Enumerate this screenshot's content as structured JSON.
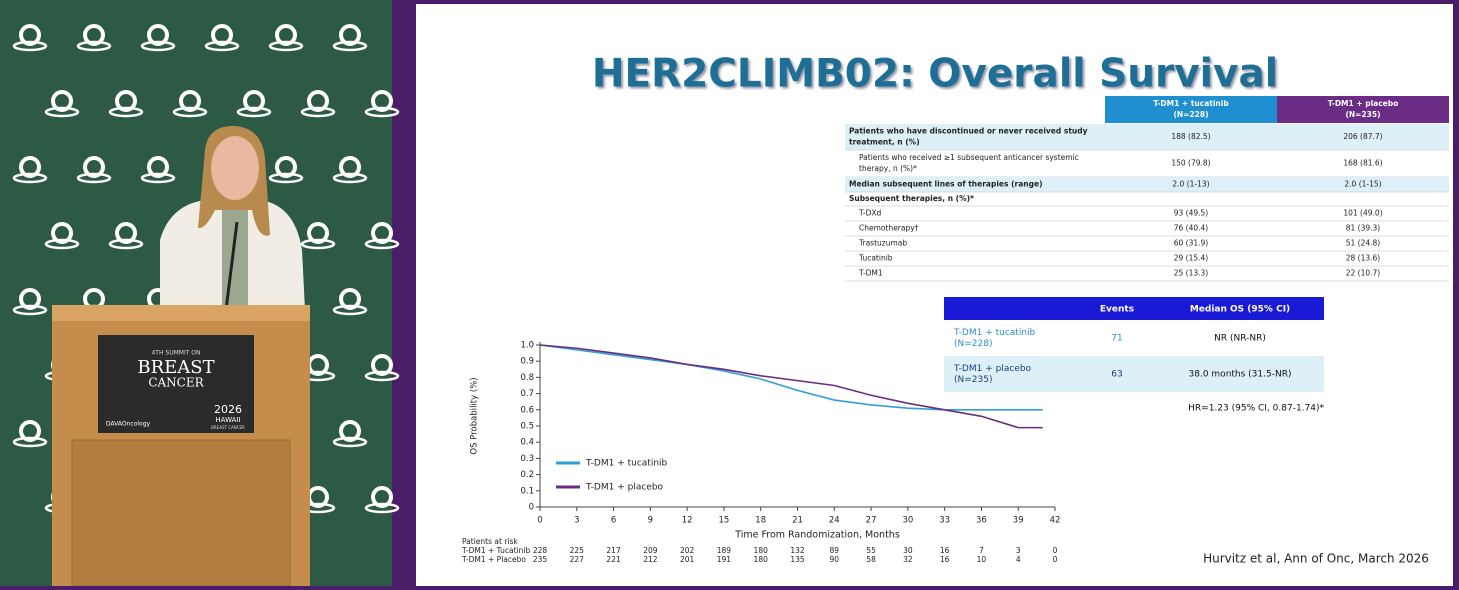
{
  "stage": {
    "podium": {
      "edition": "4TH SUMMIT ON",
      "word1": "BREAST",
      "word2": "CANCER",
      "sponsor": "DAVAOncology",
      "year": "2026",
      "place": "HAWAII",
      "event": "BREAST CANCER"
    }
  },
  "slide": {
    "title": "HER2CLIMB02: Overall Survival",
    "table": {
      "columns": [
        [
          "T-DM1 + tucatinib",
          "(N=228)"
        ],
        [
          "T-DM1 + placebo",
          "(N=235)"
        ]
      ],
      "rows": [
        {
          "label": [
            "Patients who have discontinued or never received study",
            "treatment, n (%)"
          ],
          "cells": [
            "188 (82.5)",
            "206 (87.7)"
          ]
        },
        {
          "label": [
            "Patients who received ≥1 subsequent anticancer systemic",
            "therapy, n (%)*"
          ],
          "cells": [
            "150 (79.8)",
            "168 (81.6)"
          ]
        },
        {
          "label": [
            "Median subsequent lines of therapies (range)"
          ],
          "cells": [
            "2.0 (1-13)",
            "2.0 (1-15)"
          ]
        },
        {
          "label": [
            "Subsequent therapies, n (%)*"
          ]
        },
        {
          "label": [
            "T-DXd"
          ],
          "cells": [
            "93 (49.5)",
            "101 (49.0)"
          ]
        },
        {
          "label": [
            "Chemotherapy†"
          ],
          "cells": [
            "76 (40.4)",
            "81 (39.3)"
          ]
        },
        {
          "label": [
            "Trastuzumab"
          ],
          "cells": [
            "60 (31.9)",
            "51 (24.8)"
          ]
        },
        {
          "label": [
            "Tucatinib"
          ],
          "cells": [
            "29 (15.4)",
            "28 (13.6)"
          ]
        },
        {
          "label": [
            "T-DM1"
          ],
          "cells": [
            "25 (13.3)",
            "22 (10.7)"
          ]
        }
      ]
    },
    "efficacy": {
      "columns": [
        "Events",
        "Median OS (95% CI)"
      ],
      "rows": [
        {
          "label": [
            "T-DM1 + tucatinib",
            "(N=228)"
          ],
          "events": "71",
          "median": "NR (NR-NR)"
        },
        {
          "label": [
            "T-DM1 + placebo",
            "(N=235)"
          ],
          "events": "63",
          "median": "38.0 months (31.5-NR)"
        }
      ],
      "hr": "HR=1.23 (95% CI, 0.87-1.74)*"
    },
    "risk": {
      "title": "Patients at risk",
      "rows": [
        {
          "name": "T-DM1 + Tucatinib",
          "counts": [
            228,
            225,
            217,
            209,
            202,
            189,
            180,
            132,
            89,
            55,
            30,
            16,
            7,
            3,
            0
          ]
        },
        {
          "name": "T-DM1 + Placebo",
          "counts": [
            235,
            227,
            221,
            212,
            201,
            191,
            180,
            135,
            90,
            58,
            32,
            16,
            10,
            4,
            0
          ]
        }
      ]
    },
    "citation": "Hurvitz et al,  Ann of Onc, March 2026"
  },
  "chart_data": {
    "type": "line",
    "x_label": "Time From Randomization, Months",
    "y_label": "OS Probability (%)",
    "x": [
      0,
      3,
      6,
      9,
      12,
      15,
      18,
      21,
      24,
      27,
      30,
      33,
      36,
      39,
      41
    ],
    "series": [
      {
        "name": "T-DM1 + tucatinib",
        "color": "#2f9fd8",
        "values": [
          1.0,
          0.97,
          0.94,
          0.91,
          0.88,
          0.84,
          0.79,
          0.72,
          0.66,
          0.63,
          0.61,
          0.6,
          0.6,
          0.6,
          0.6
        ]
      },
      {
        "name": "T-DM1 + placebo",
        "color": "#6b2d7e",
        "values": [
          1.0,
          0.98,
          0.95,
          0.92,
          0.88,
          0.85,
          0.81,
          0.78,
          0.75,
          0.69,
          0.64,
          0.6,
          0.56,
          0.49,
          0.49
        ]
      }
    ],
    "xlim": [
      0,
      42
    ],
    "xticks": [
      0,
      3,
      6,
      9,
      12,
      15,
      18,
      21,
      24,
      27,
      30,
      33,
      36,
      39,
      42
    ],
    "ylim": [
      0,
      1
    ],
    "yticks": [
      0,
      0.1,
      0.2,
      0.3,
      0.4,
      0.5,
      0.6,
      0.7,
      0.8,
      0.9,
      {
        "value": 1,
        "label": "1.0"
      }
    ]
  }
}
